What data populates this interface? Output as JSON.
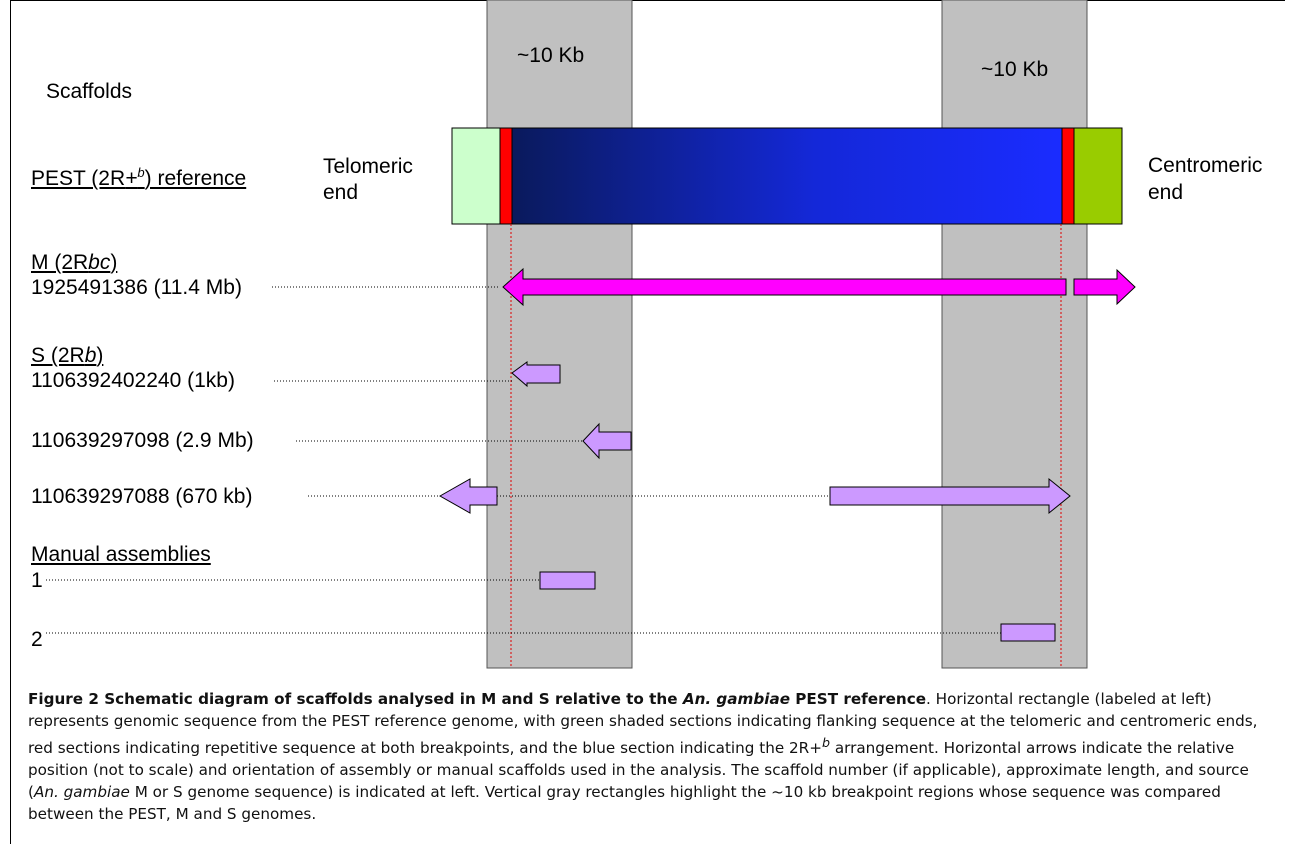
{
  "diagram": {
    "scaffolds_header": "Scaffolds",
    "region_label_left": "~10 Kb",
    "region_label_right": "~10 Kb",
    "reference_label": "PEST (2R+b) reference",
    "reference_label_parts": {
      "a": "PEST (2R",
      "b": "+",
      "c": "b",
      "d": ") reference"
    },
    "telomeric_label": [
      "Telomeric",
      "end"
    ],
    "centromeric_label": [
      "Centromeric",
      "end"
    ],
    "m_group": {
      "heading_a": "M (2R",
      "heading_b": "bc",
      "heading_c": ")",
      "scaffold": "1925491386 (11.4 Mb)"
    },
    "s_group": {
      "heading_a": "S (2R",
      "heading_b": "b",
      "heading_c": ")",
      "scaffolds": [
        "1106392402240 (1kb)",
        "110639297098 (2.9 Mb)",
        "110639297088 (670 kb)"
      ]
    },
    "manual_group": {
      "heading": "Manual assemblies",
      "items": [
        "1",
        "2"
      ]
    },
    "colors": {
      "gray_region": "#c0c0c0",
      "blue_dark": "#0a1a5c",
      "blue_bright": "#1a2cff",
      "red": "#ff0000",
      "green_light": "#ccffcc",
      "green": "#99cc00",
      "magenta": "#ff00ff",
      "lavender": "#cc99ff"
    }
  },
  "caption": {
    "title_a": "Figure 2 Schematic diagram of scaffolds analysed in M and S relative to the ",
    "title_italic": "An. gambiae",
    "title_b": " PEST reference",
    "body_1": ". Horizontal rectangle (labeled at left) represents genomic sequence from the PEST reference genome, with green shaded sections indicating flanking sequence at the telomeric and centromeric ends, red sections indicating repetitive sequence at both breakpoints, and the blue section indicating the 2R+",
    "body_sup": "b",
    "body_2": " arrangement. Horizontal arrows indicate the relative position (not to scale) and orientation of assembly or manual scaffolds used in the analysis. The scaffold number (if applicable), approximate length, and source (",
    "body_italic": "An. gambiae",
    "body_3": " M or S genome sequence) is indicated at left. Vertical gray rectangles highlight the ~10 kb breakpoint regions whose sequence was compared between the PEST, M and S genomes."
  }
}
